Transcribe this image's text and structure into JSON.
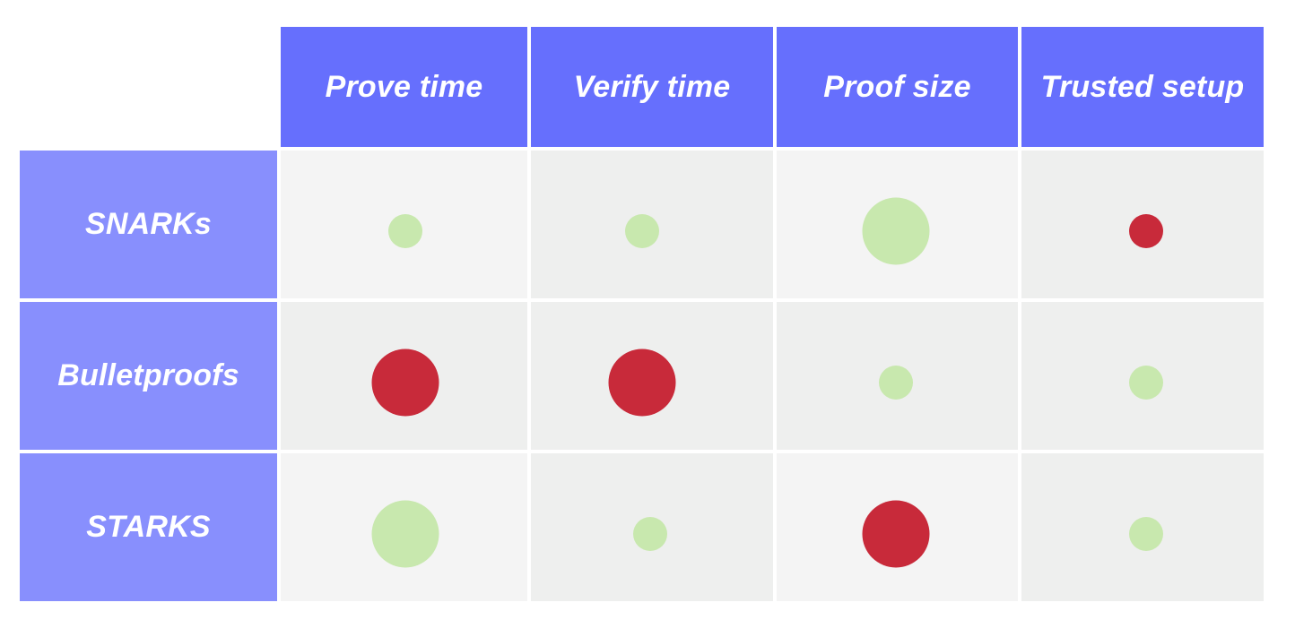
{
  "colors": {
    "column_header_bg": "#666ffd",
    "row_header_bg": "#888ffd",
    "cell_light": "#f4f4f4",
    "cell_dark": "#eeefee",
    "good": "#c8e8ae",
    "bad": "#c82a3a"
  },
  "columns": [
    "Prove time",
    "Verify time",
    "Proof size",
    "Trusted setup"
  ],
  "rows": [
    {
      "label": "SNARKs",
      "cells": [
        {
          "rating": "good",
          "size": "small"
        },
        {
          "rating": "good",
          "size": "small"
        },
        {
          "rating": "good",
          "size": "large"
        },
        {
          "rating": "bad",
          "size": "small"
        }
      ]
    },
    {
      "label": "Bulletproofs",
      "cells": [
        {
          "rating": "bad",
          "size": "large"
        },
        {
          "rating": "bad",
          "size": "large"
        },
        {
          "rating": "good",
          "size": "small"
        },
        {
          "rating": "good",
          "size": "small"
        }
      ]
    },
    {
      "label": "STARKS",
      "cells": [
        {
          "rating": "good",
          "size": "large"
        },
        {
          "rating": "good",
          "size": "small"
        },
        {
          "rating": "bad",
          "size": "large"
        },
        {
          "rating": "good",
          "size": "small"
        }
      ]
    }
  ]
}
